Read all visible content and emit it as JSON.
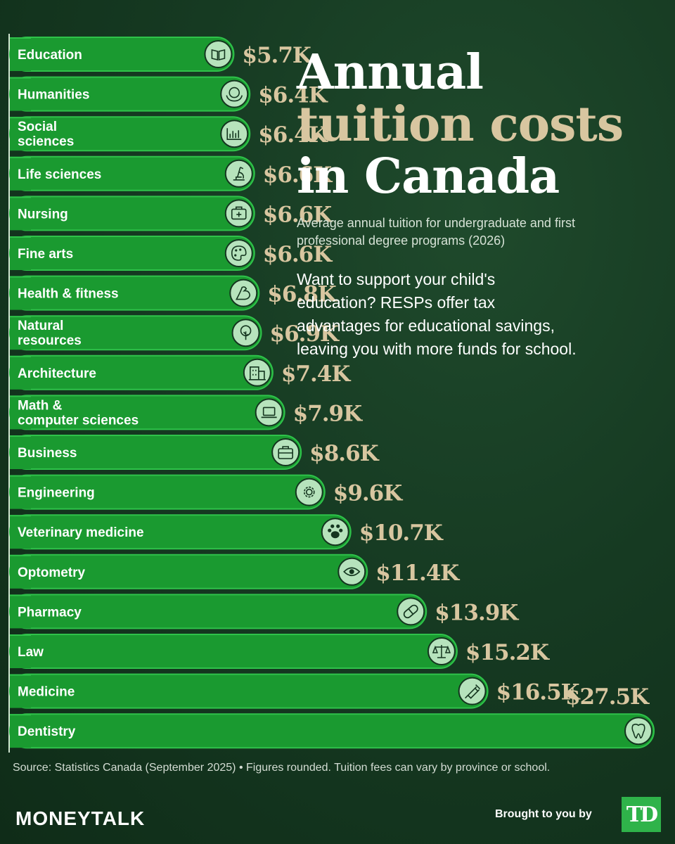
{
  "title": {
    "line1": "Annual",
    "line2": "tuition costs",
    "line3": "in Canada"
  },
  "subtitle": "Average annual tuition for undergraduate and first professional degree programs (2026)",
  "body_text": "Want to support your child's education? RESPs offer tax advantages for educational savings, leaving you with more funds for school.",
  "source": "Source: Statistics Canada (September 2025) • Figures rounded. Tuition fees can vary by province or school.",
  "brand": "MONEYTALK",
  "brought_by": "Brought to you by",
  "logo_text": "TD",
  "colors": {
    "bar": "#1a9a30",
    "bar_edge": "#2fc24a",
    "value_label": "#d8c6a0",
    "icon_circle": "#b6e3bc"
  },
  "chart_data": {
    "type": "bar",
    "orientation": "horizontal",
    "categories": [
      "Education",
      "Humanities",
      "Social\nsciences",
      "Life sciences",
      "Nursing",
      "Fine arts",
      "Health & fitness",
      "Natural\nresources",
      "Architecture",
      "Math &\ncomputer sciences",
      "Business",
      "Engineering",
      "Veterinary medicine",
      "Optometry",
      "Pharmacy",
      "Law",
      "Medicine",
      "Dentistry"
    ],
    "values": [
      5.7,
      6.4,
      6.4,
      6.6,
      6.6,
      6.6,
      6.8,
      6.9,
      7.4,
      7.9,
      8.6,
      9.6,
      10.7,
      11.4,
      13.9,
      15.2,
      16.5,
      27.5
    ],
    "value_labels": [
      "$5.7K",
      "$6.4K",
      "$6.4K",
      "$6.6K",
      "$6.6K",
      "$6.6K",
      "$6.8K",
      "$6.9K",
      "$7.4K",
      "$7.9K",
      "$8.6K",
      "$9.6K",
      "$10.7K",
      "$11.4K",
      "$13.9K",
      "$15.2K",
      "$16.5K",
      "$27.5K"
    ],
    "icons": [
      "book-icon",
      "globe-hands-icon",
      "bar-chart-icon",
      "microscope-icon",
      "first-aid-kit-icon",
      "palette-icon",
      "flexed-arm-icon",
      "tree-icon",
      "building-icon",
      "laptop-icon",
      "briefcase-icon",
      "gear-icon",
      "paw-icon",
      "eye-icon",
      "pill-icon",
      "scales-icon",
      "syringe-icon",
      "tooth-icon"
    ],
    "unit": "thousand CAD",
    "grid": false
  }
}
